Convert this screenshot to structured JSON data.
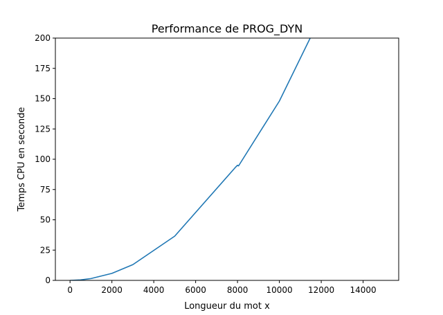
{
  "chart_data": {
    "type": "line",
    "title": "Performance de PROG_DYN",
    "xlabel": "Longueur du mot x",
    "ylabel": "Temps CPU en seconde",
    "xlim": [
      -700,
      15700
    ],
    "ylim": [
      0,
      200
    ],
    "xticks": [
      0,
      2000,
      4000,
      6000,
      8000,
      10000,
      12000,
      14000
    ],
    "yticks": [
      0,
      25,
      50,
      75,
      100,
      125,
      150,
      175,
      200
    ],
    "grid": false,
    "legend": "none",
    "series": [
      {
        "color": "#1f77b4",
        "x": [
          0,
          500,
          1000,
          2000,
          3000,
          5000,
          7900,
          8000,
          8050,
          10000,
          11500
        ],
        "y": [
          0,
          0.4,
          1.5,
          5.8,
          13,
          36.5,
          93.3,
          95,
          94.5,
          148,
          201
        ]
      }
    ]
  }
}
